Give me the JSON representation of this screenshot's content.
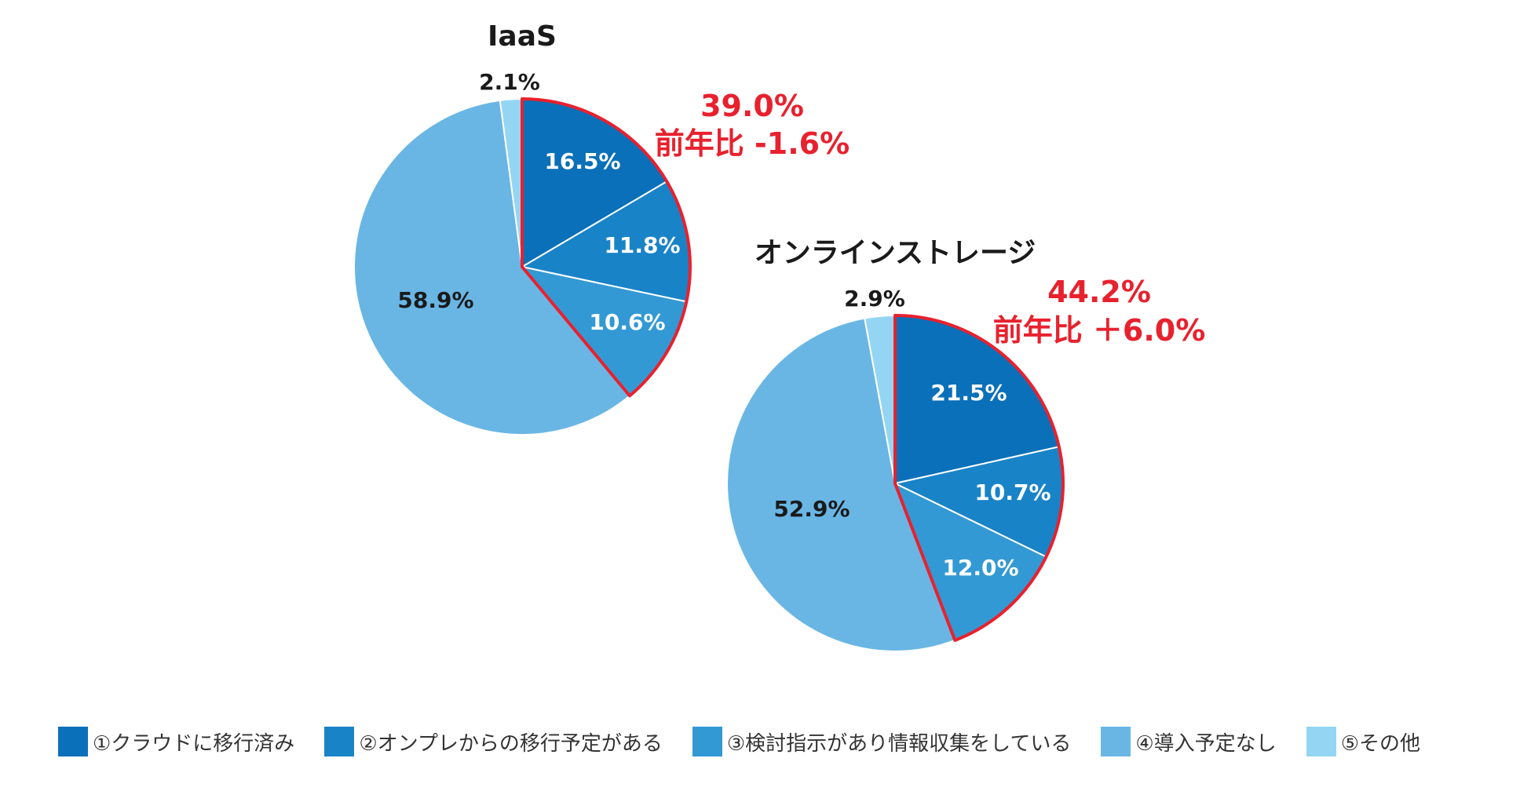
{
  "legend": {
    "items": [
      {
        "label": "①クラウドに移行済み",
        "color": "#0a70b9"
      },
      {
        "label": "②オンプレからの移行予定がある",
        "color": "#1983c8"
      },
      {
        "label": "③検討指示があり情報収集をしている",
        "color": "#3399d4"
      },
      {
        "label": "④導入予定なし",
        "color": "#69b6e5"
      },
      {
        "label": "⑤その他",
        "color": "#95d5f4"
      }
    ]
  },
  "chart_data": [
    {
      "type": "pie",
      "title": "IaaS",
      "categories": [
        "①クラウドに移行済み",
        "②オンプレからの移行予定がある",
        "③検討指示があり情報収集をしている",
        "④導入予定なし",
        "⑤その他"
      ],
      "values": [
        16.5,
        11.8,
        10.6,
        58.9,
        2.1
      ],
      "labels": [
        "16.5%",
        "11.8%",
        "10.6%",
        "58.9%",
        "2.1%"
      ],
      "highlight": {
        "value": "39.0%",
        "note": "前年比 -1.6%",
        "border_color": "#e8212e"
      }
    },
    {
      "type": "pie",
      "title": "オンラインストレージ",
      "categories": [
        "①クラウドに移行済み",
        "②オンプレからの移行予定がある",
        "③検討指示があり情報収集をしている",
        "④導入予定なし",
        "⑤その他"
      ],
      "values": [
        21.5,
        10.7,
        12.0,
        52.9,
        2.9
      ],
      "labels": [
        "21.5%",
        "10.7%",
        "12.0%",
        "52.9%",
        "2.9%"
      ],
      "highlight": {
        "value": "44.2%",
        "note": "前年比 ＋6.0%",
        "border_color": "#e8212e"
      }
    }
  ]
}
